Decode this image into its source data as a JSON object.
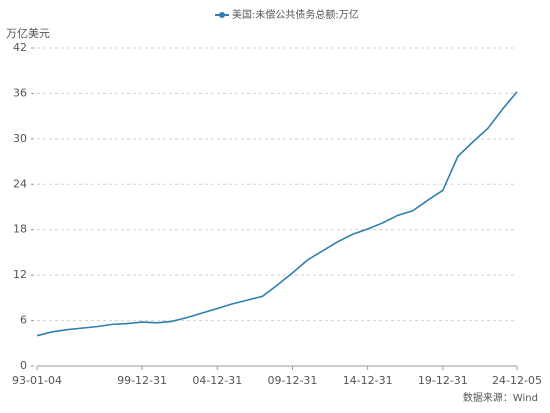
{
  "chart_data": {
    "type": "line",
    "y_label": "万亿美元",
    "source": "数据来源：Wind",
    "x": [
      "93-01-04",
      "93-12-31",
      "94-12-31",
      "95-12-31",
      "96-12-31",
      "97-12-31",
      "98-12-31",
      "99-12-31",
      "00-12-31",
      "01-12-31",
      "02-12-31",
      "03-12-31",
      "04-12-31",
      "05-12-31",
      "06-12-31",
      "07-12-31",
      "08-12-31",
      "09-12-31",
      "10-12-31",
      "11-12-31",
      "12-12-31",
      "13-12-31",
      "14-12-31",
      "15-12-31",
      "16-12-31",
      "17-12-31",
      "18-12-31",
      "19-12-31",
      "20-12-31",
      "21-12-31",
      "22-12-31",
      "23-12-31",
      "24-12-05"
    ],
    "series": [
      {
        "name": "美国:未偿公共债务总额:万亿",
        "color": "#2f80b0",
        "values": [
          4.0,
          4.5,
          4.8,
          5.0,
          5.2,
          5.5,
          5.6,
          5.8,
          5.7,
          5.9,
          6.4,
          7.0,
          7.6,
          8.2,
          8.7,
          9.2,
          10.7,
          12.3,
          14.0,
          15.2,
          16.4,
          17.4,
          18.1,
          18.9,
          19.9,
          20.5,
          21.9,
          23.2,
          27.7,
          29.6,
          31.4,
          34.0,
          36.2
        ]
      }
    ],
    "xlim": [
      "93-01-04",
      "24-12-05"
    ],
    "xticks": [
      "93-01-04",
      "99-12-31",
      "04-12-31",
      "09-12-31",
      "14-12-31",
      "19-12-31",
      "24-12-05"
    ],
    "ylim": [
      0,
      42
    ],
    "yticks": [
      0,
      6,
      12,
      18,
      24,
      30,
      36,
      42
    ],
    "grid": true
  }
}
